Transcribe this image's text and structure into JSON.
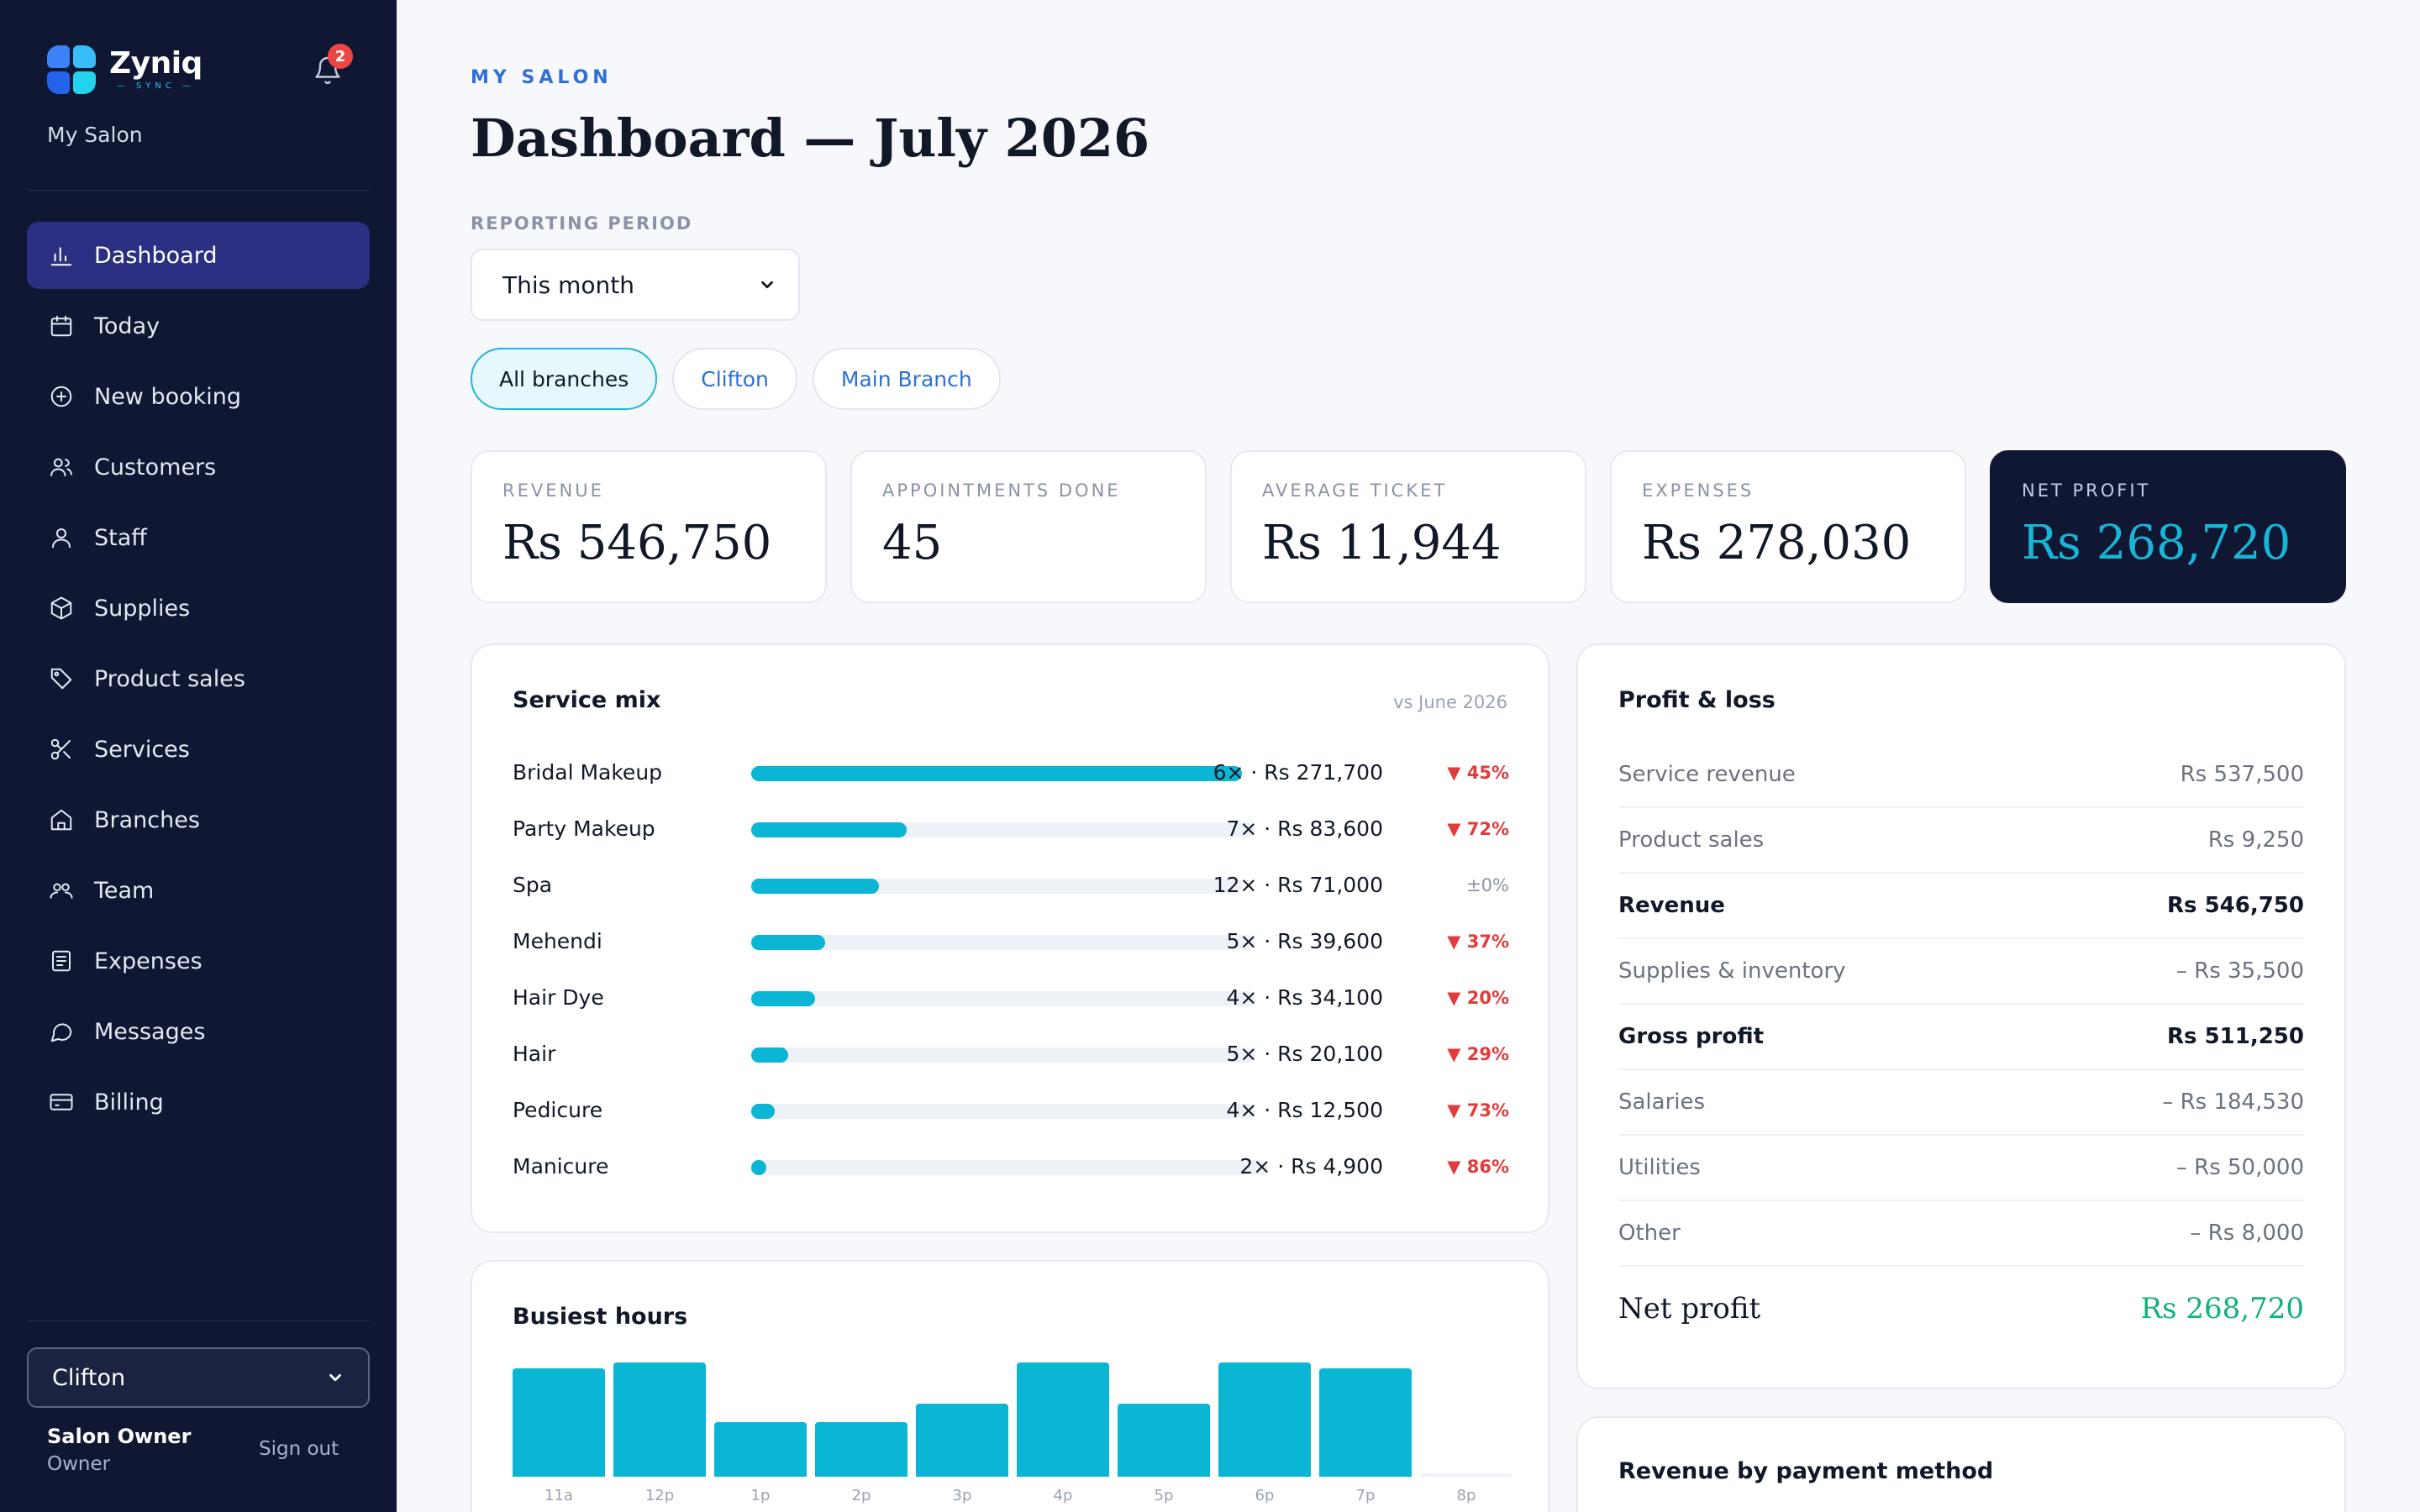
{
  "brand": {
    "name": "Zyniq",
    "sub": "SYNC",
    "salon": "My Salon",
    "notifications": "2"
  },
  "nav": [
    {
      "label": "Dashboard",
      "icon": "bar-chart-icon",
      "active": true
    },
    {
      "label": "Today",
      "icon": "calendar-icon"
    },
    {
      "label": "New booking",
      "icon": "plus-circle-icon"
    },
    {
      "label": "Customers",
      "icon": "users-icon"
    },
    {
      "label": "Staff",
      "icon": "user-icon"
    },
    {
      "label": "Supplies",
      "icon": "box-icon"
    },
    {
      "label": "Product sales",
      "icon": "tag-icon"
    },
    {
      "label": "Services",
      "icon": "scissors-icon"
    },
    {
      "label": "Branches",
      "icon": "home-icon"
    },
    {
      "label": "Team",
      "icon": "team-icon"
    },
    {
      "label": "Expenses",
      "icon": "receipt-icon"
    },
    {
      "label": "Messages",
      "icon": "chat-icon"
    },
    {
      "label": "Billing",
      "icon": "credit-card-icon"
    }
  ],
  "footer": {
    "branch": "Clifton",
    "user_name": "Salon Owner",
    "user_role": "Owner",
    "signout": "Sign out"
  },
  "header": {
    "eyebrow": "MY SALON",
    "title": "Dashboard — July 2026",
    "period_label": "REPORTING PERIOD",
    "period_value": "This month"
  },
  "branches": [
    "All branches",
    "Clifton",
    "Main Branch"
  ],
  "kpis": [
    {
      "label": "REVENUE",
      "value": "Rs 546,750"
    },
    {
      "label": "APPOINTMENTS DONE",
      "value": "45"
    },
    {
      "label": "AVERAGE TICKET",
      "value": "Rs 11,944"
    },
    {
      "label": "EXPENSES",
      "value": "Rs 278,030"
    },
    {
      "label": "NET PROFIT",
      "value": "Rs 268,720"
    }
  ],
  "service_mix": {
    "title": "Service mix",
    "note": "vs June 2026",
    "rows": [
      {
        "name": "Bridal Makeup",
        "stat": "6× · Rs 271,700",
        "delta": "▼ 45%",
        "share": 1.0
      },
      {
        "name": "Party Makeup",
        "stat": "7× · Rs 83,600",
        "delta": "▼ 72%",
        "share": 0.308
      },
      {
        "name": "Spa",
        "stat": "12× · Rs 71,000",
        "delta": "±0%",
        "share": 0.261,
        "flat": true
      },
      {
        "name": "Mehendi",
        "stat": "5× · Rs 39,600",
        "delta": "▼ 37%",
        "share": 0.146
      },
      {
        "name": "Hair Dye",
        "stat": "4× · Rs 34,100",
        "delta": "▼ 20%",
        "share": 0.126
      },
      {
        "name": "Hair",
        "stat": "5× · Rs 20,100",
        "delta": "▼ 29%",
        "share": 0.074
      },
      {
        "name": "Pedicure",
        "stat": "4× · Rs 12,500",
        "delta": "▼ 73%",
        "share": 0.046
      },
      {
        "name": "Manicure",
        "stat": "2× · Rs 4,900",
        "delta": "▼ 86%",
        "share": 0.018
      }
    ]
  },
  "profit_loss": {
    "title": "Profit & loss",
    "rows": [
      {
        "label": "Service revenue",
        "value": "Rs 537,500"
      },
      {
        "label": "Product sales",
        "value": "Rs 9,250"
      },
      {
        "label": "Revenue",
        "value": "Rs 546,750",
        "bold": true
      },
      {
        "label": "Supplies & inventory",
        "value": "– Rs 35,500"
      },
      {
        "label": "Gross profit",
        "value": "Rs 511,250",
        "bold": true
      },
      {
        "label": "Salaries",
        "value": "– Rs 184,530"
      },
      {
        "label": "Utilities",
        "value": "– Rs 50,000"
      },
      {
        "label": "Other",
        "value": "– Rs 8,000"
      }
    ],
    "net_label": "Net profit",
    "net_value": "Rs 268,720"
  },
  "busiest_hours": {
    "title": "Busiest hours",
    "hours": [
      "11a",
      "12p",
      "1p",
      "2p",
      "3p",
      "4p",
      "5p",
      "6p",
      "7p",
      "8p"
    ],
    "levels": [
      0.95,
      1.0,
      0.48,
      0.48,
      0.64,
      1.0,
      0.64,
      1.0,
      0.95,
      0.0
    ]
  },
  "payment_method": {
    "title": "Revenue by payment method"
  },
  "colors": {
    "sidebar": "#0f1733",
    "accent": "#0bb6d4",
    "active_nav": "#2b2f82",
    "negative": "#e23b3b",
    "positive": "#10b07a"
  }
}
